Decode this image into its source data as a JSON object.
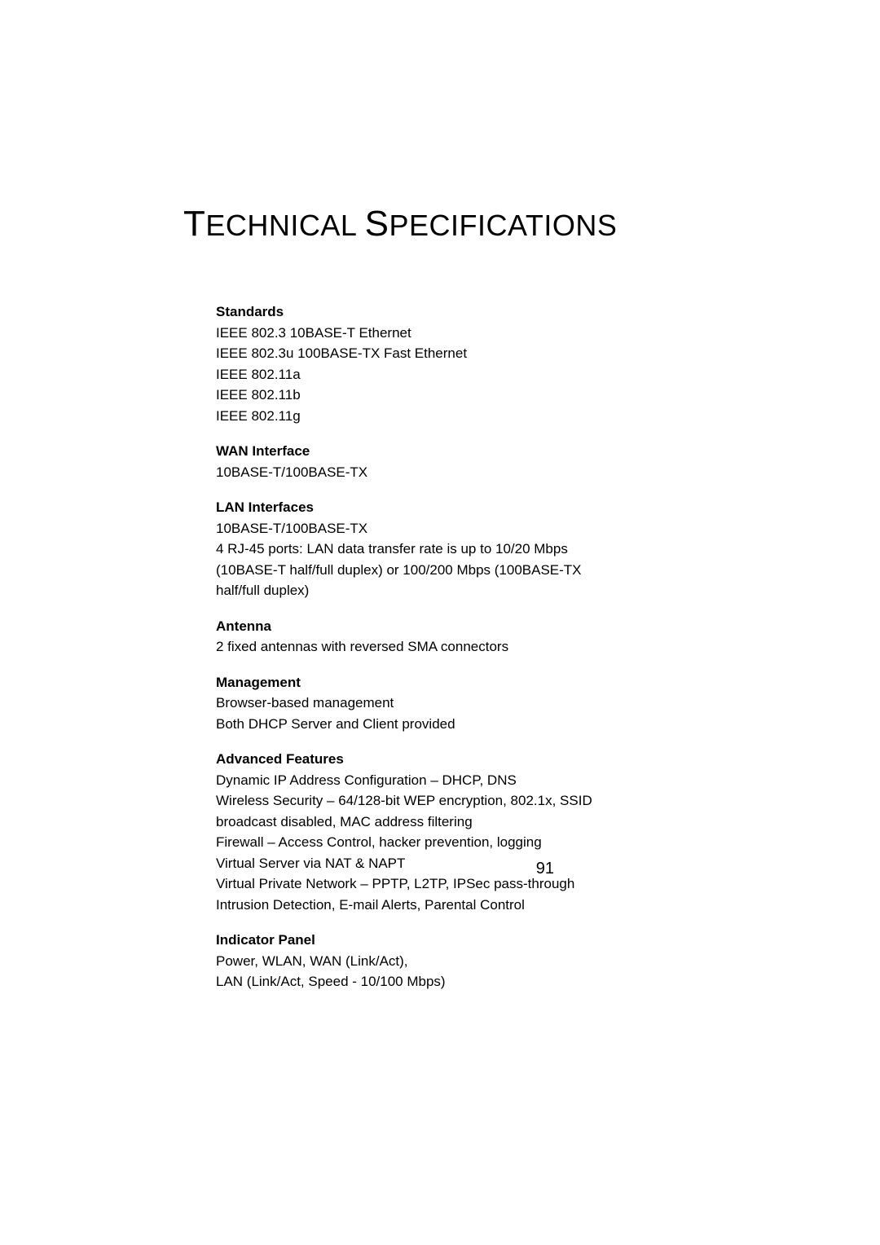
{
  "page": {
    "title_prefix1": "T",
    "title_part1": "ECHNICAL ",
    "title_prefix2": "S",
    "title_part2": "PECIFICATIONS",
    "number": "91"
  },
  "sections": [
    {
      "heading": "Standards",
      "body": "IEEE 802.3 10BASE-T Ethernet\nIEEE 802.3u 100BASE-TX Fast Ethernet\nIEEE 802.11a\nIEEE 802.11b\nIEEE 802.11g"
    },
    {
      "heading": "WAN Interface",
      "body": "10BASE-T/100BASE-TX"
    },
    {
      "heading": "LAN Interfaces",
      "body": "10BASE-T/100BASE-TX\n4 RJ-45 ports: LAN data transfer rate is up to 10/20 Mbps (10BASE-T half/full duplex) or 100/200 Mbps (100BASE-TX half/full duplex)"
    },
    {
      "heading": "Antenna",
      "body": "2 fixed antennas with reversed SMA connectors"
    },
    {
      "heading": "Management",
      "body": "Browser-based management\nBoth DHCP Server and Client provided"
    },
    {
      "heading": "Advanced Features",
      "body": "Dynamic IP Address Configuration – DHCP, DNS\nWireless Security – 64/128-bit WEP encryption, 802.1x, SSID broadcast disabled, MAC address filtering\nFirewall – Access Control, hacker prevention, logging\nVirtual Server via NAT & NAPT\nVirtual Private Network – PPTP, L2TP, IPSec pass-through\nIntrusion Detection, E-mail Alerts, Parental Control"
    },
    {
      "heading": "Indicator Panel",
      "body": "Power, WLAN, WAN (Link/Act),\nLAN (Link/Act, Speed - 10/100 Mbps)"
    }
  ],
  "styling": {
    "background_color": "#ffffff",
    "text_color": "#000000",
    "title_fontsize": 36,
    "title_cap_fontsize": 44,
    "heading_fontsize": 17,
    "body_fontsize": 17,
    "page_number_fontsize": 20
  }
}
